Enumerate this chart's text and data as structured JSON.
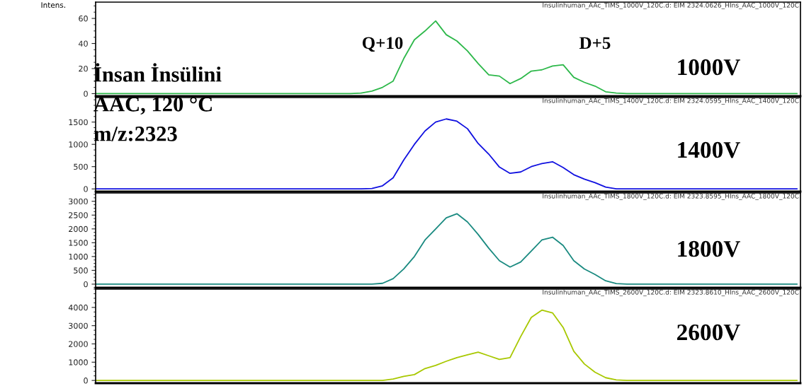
{
  "chart_data": [
    {
      "type": "line",
      "title": "Insulinhuman_AAc_TIMS_1000V_120C.d: EIM 2324.0626_HIns_AAC_1000V_120C",
      "ylabel": "Intens.",
      "annotations": [
        "İnsan İnsülini\nAAC, 120 °C\nm/z:2323",
        "Q+10",
        "D+5",
        "1000V"
      ],
      "tick_labels": "y",
      "ylim": [
        -2,
        73
      ],
      "yticks": [
        0,
        20,
        40,
        60
      ],
      "categories": [
        null,
        null,
        null,
        null,
        null,
        null,
        null,
        null,
        null,
        null,
        null,
        null,
        null,
        null,
        null,
        null,
        null,
        null,
        null,
        null,
        null,
        null,
        null,
        null,
        null,
        null,
        null,
        null,
        null,
        null,
        null,
        null,
        null,
        null,
        null,
        null,
        null,
        null,
        null,
        null,
        null,
        null,
        null,
        null,
        null,
        null,
        null,
        null,
        null,
        null,
        null,
        null,
        null,
        null,
        null,
        null,
        null,
        null,
        null,
        null,
        null,
        null,
        null,
        null,
        null,
        null,
        null
      ],
      "series": [
        {
          "color": "#2db84a",
          "values": [
            0,
            0,
            0,
            0,
            0,
            0,
            0,
            0,
            0,
            0,
            0,
            0,
            0,
            0,
            0,
            0,
            0,
            0,
            0,
            0,
            0,
            0,
            0,
            0,
            0,
            0.5,
            2,
            5,
            10,
            28,
            43,
            50,
            58,
            47,
            42,
            34,
            24,
            15,
            14,
            8,
            12,
            18,
            19,
            22,
            23,
            13,
            9,
            6,
            1.5,
            0.5,
            0,
            0,
            0,
            0,
            0,
            0,
            0,
            0,
            0,
            0,
            0,
            0,
            0,
            0,
            0,
            0,
            0
          ]
        }
      ]
    },
    {
      "type": "line",
      "title": "Insulinhuman_AAc_TIMS_1400V_120C.d: EIM 2324.0595_HIns_AAC_1400V_120C",
      "annotations": [
        "1400V"
      ],
      "tick_labels": "y",
      "ylim": [
        -60,
        2050
      ],
      "yticks": [
        0,
        500,
        1000,
        1500
      ],
      "categories": [
        null,
        null,
        null,
        null,
        null,
        null,
        null,
        null,
        null,
        null,
        null,
        null,
        null,
        null,
        null,
        null,
        null,
        null,
        null,
        null,
        null,
        null,
        null,
        null,
        null,
        null,
        null,
        null,
        null,
        null,
        null,
        null,
        null,
        null,
        null,
        null,
        null,
        null,
        null,
        null,
        null,
        null,
        null,
        null,
        null,
        null,
        null,
        null,
        null,
        null,
        null,
        null,
        null,
        null,
        null,
        null,
        null,
        null,
        null,
        null,
        null,
        null,
        null,
        null,
        null,
        null,
        null
      ],
      "series": [
        {
          "color": "#1010e0",
          "values": [
            0,
            0,
            0,
            0,
            0,
            0,
            0,
            0,
            0,
            0,
            0,
            0,
            0,
            0,
            0,
            0,
            0,
            0,
            0,
            0,
            0,
            0,
            0,
            0,
            0,
            0,
            10,
            70,
            250,
            650,
            1000,
            1300,
            1500,
            1570,
            1520,
            1350,
            1020,
            780,
            490,
            350,
            380,
            500,
            570,
            610,
            480,
            320,
            220,
            140,
            40,
            0,
            0,
            0,
            0,
            0,
            0,
            0,
            0,
            0,
            0,
            0,
            0,
            0,
            0,
            0,
            0,
            0,
            0
          ]
        }
      ]
    },
    {
      "type": "line",
      "title": "Insulinhuman_AAc_TIMS_1800V_120C.d: EIM 2323.8595_HIns_AAC_1800V_120C",
      "annotations": [
        "1800V"
      ],
      "tick_labels": "y",
      "ylim": [
        -130,
        3300
      ],
      "yticks": [
        0,
        500,
        1000,
        1500,
        2000,
        2500,
        3000
      ],
      "categories": [
        null,
        null,
        null,
        null,
        null,
        null,
        null,
        null,
        null,
        null,
        null,
        null,
        null,
        null,
        null,
        null,
        null,
        null,
        null,
        null,
        null,
        null,
        null,
        null,
        null,
        null,
        null,
        null,
        null,
        null,
        null,
        null,
        null,
        null,
        null,
        null,
        null,
        null,
        null,
        null,
        null,
        null,
        null,
        null,
        null,
        null,
        null,
        null,
        null,
        null,
        null,
        null,
        null,
        null,
        null,
        null,
        null,
        null,
        null,
        null,
        null,
        null,
        null,
        null,
        null,
        null,
        null
      ],
      "series": [
        {
          "color": "#1a8a80",
          "values": [
            0,
            0,
            0,
            0,
            0,
            0,
            0,
            0,
            0,
            0,
            0,
            0,
            0,
            0,
            0,
            0,
            0,
            0,
            0,
            0,
            0,
            0,
            0,
            0,
            0,
            0,
            0,
            30,
            200,
            550,
            1000,
            1600,
            2000,
            2400,
            2550,
            2250,
            1800,
            1300,
            850,
            620,
            800,
            1200,
            1600,
            1700,
            1400,
            850,
            550,
            350,
            120,
            20,
            0,
            0,
            0,
            0,
            0,
            0,
            0,
            0,
            0,
            0,
            0,
            0,
            0,
            0,
            0,
            0,
            0
          ]
        }
      ]
    },
    {
      "type": "line",
      "title": "Insulinhuman_AAc_TIMS_2600V_120C.d: EIM 2323.8610_HIns_AAC_2600V_120C",
      "annotations": [
        "2600V"
      ],
      "tick_labels": "y",
      "ylim": [
        -150,
        5000
      ],
      "yticks": [
        0,
        1000,
        2000,
        3000,
        4000
      ],
      "categories": [
        null,
        null,
        null,
        null,
        null,
        null,
        null,
        null,
        null,
        null,
        null,
        null,
        null,
        null,
        null,
        null,
        null,
        null,
        null,
        null,
        null,
        null,
        null,
        null,
        null,
        null,
        null,
        null,
        null,
        null,
        null,
        null,
        null,
        null,
        null,
        null,
        null,
        null,
        null,
        null,
        null,
        null,
        null,
        null,
        null,
        null,
        null,
        null,
        null,
        null,
        null,
        null,
        null,
        null,
        null,
        null,
        null,
        null,
        null,
        null,
        null,
        null,
        null,
        null,
        null,
        null,
        null
      ],
      "series": [
        {
          "color": "#a8c800",
          "values": [
            0,
            0,
            0,
            0,
            0,
            0,
            0,
            0,
            0,
            0,
            0,
            0,
            0,
            0,
            0,
            0,
            0,
            0,
            0,
            0,
            0,
            0,
            0,
            0,
            0,
            0,
            0,
            0,
            80,
            220,
            320,
            650,
            820,
            1050,
            1250,
            1400,
            1550,
            1350,
            1150,
            1250,
            2400,
            3450,
            3850,
            3700,
            2900,
            1600,
            900,
            450,
            150,
            30,
            0,
            0,
            0,
            0,
            0,
            0,
            0,
            0,
            0,
            0,
            0,
            0,
            0,
            0,
            0,
            0,
            0
          ]
        }
      ]
    }
  ]
}
